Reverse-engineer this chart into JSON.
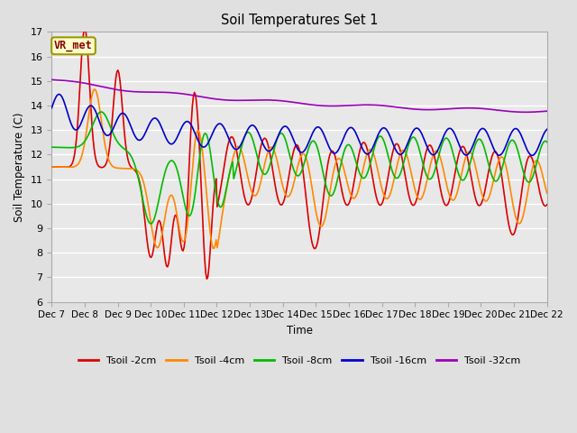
{
  "title": "Soil Temperatures Set 1",
  "xlabel": "Time",
  "ylabel": "Soil Temperature (C)",
  "ylim": [
    6.0,
    17.0
  ],
  "yticks": [
    6.0,
    7.0,
    8.0,
    9.0,
    10.0,
    11.0,
    12.0,
    13.0,
    14.0,
    15.0,
    16.0,
    17.0
  ],
  "background_color": "#e0e0e0",
  "plot_bg_color": "#e8e8e8",
  "grid_color": "#ffffff",
  "annotation_label": "VR_met",
  "annotation_bg": "#ffffcc",
  "annotation_border": "#999900",
  "annotation_text_color": "#880000",
  "series": {
    "Tsoil -2cm": {
      "color": "#dd0000",
      "lw": 1.2
    },
    "Tsoil -4cm": {
      "color": "#ff8800",
      "lw": 1.2
    },
    "Tsoil -8cm": {
      "color": "#00bb00",
      "lw": 1.2
    },
    "Tsoil -16cm": {
      "color": "#0000cc",
      "lw": 1.2
    },
    "Tsoil -32cm": {
      "color": "#9900bb",
      "lw": 1.2
    }
  },
  "xtick_labels": [
    "Dec 7",
    "Dec 8",
    "Dec 9",
    "Dec 10",
    "Dec 11",
    "Dec 12",
    "Dec 13",
    "Dec 14",
    "Dec 15",
    "Dec 16",
    "Dec 17",
    "Dec 18",
    "Dec 19",
    "Dec 20",
    "Dec 21",
    "Dec 22"
  ],
  "n_points": 480
}
